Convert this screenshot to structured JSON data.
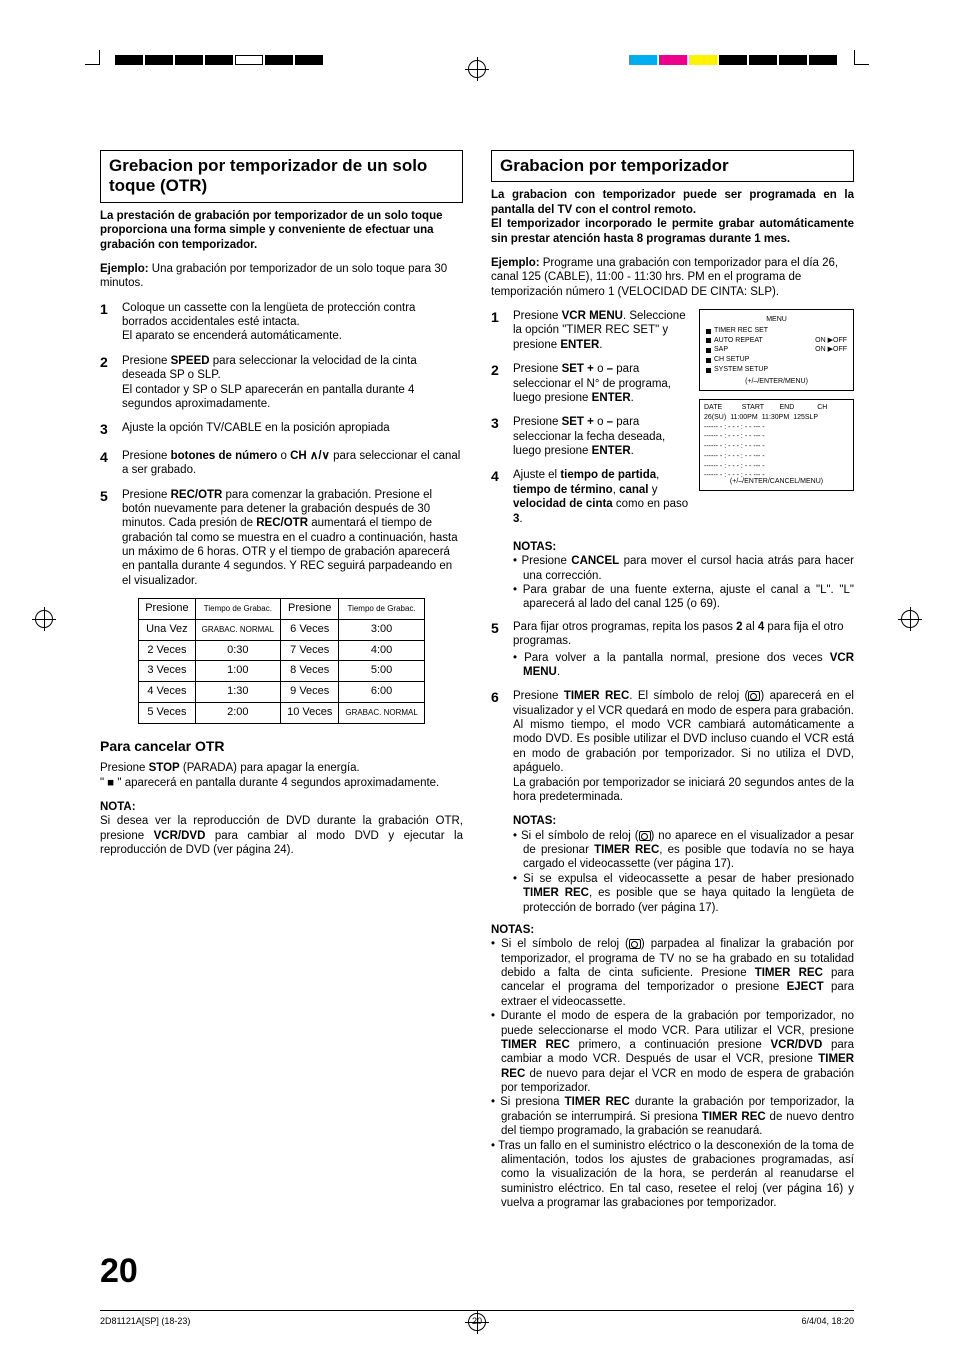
{
  "colorBars": {
    "left": [
      "#000000",
      "#000000",
      "#000000",
      "#000000",
      "#ffffff",
      "#000000",
      "#000000"
    ],
    "right": [
      "#00aeef",
      "#ec008c",
      "#fff200",
      "#000000",
      "#000000",
      "#000000",
      "#000000"
    ]
  },
  "left": {
    "title": "Grebacion por temporizador de un solo toque (OTR)",
    "intro": "La prestación de grabación por temporizador de un solo toque proporciona una forma simple y conveniente de efectuar una grabación con temporizador.",
    "example_label": "Ejemplo:",
    "example_text": " Una grabación por temporizador de un solo toque para 30 minutos.",
    "steps": [
      "Coloque un cassette con la lengüeta de protección contra borrados accidentales esté intacta.\nEl aparato se encenderá automáticamente.",
      "Presione <b>SPEED</b> para seleccionar la velocidad de la cinta deseada SP o SLP.\nEl contador y SP o SLP aparecerán en pantalla durante 4 segundos aproximadamente.",
      "Ajuste la opción TV/CABLE en la posición apropiada",
      "Presione <b>botones de número</b> o <b>CH ∧/∨</b> para seleccionar el canal a ser grabado.",
      "Presione <b>REC/OTR</b> para comenzar la grabación. Presione el botón nuevamente para detener la grabación después de 30 minutos. Cada presión de <b>REC/OTR</b> aumentará el tiempo de grabación tal como se muestra en el cuadro a continuación, hasta un máximo de 6 horas. OTR y el tiempo de grabación aparecerá en pantalla durante 4 segundos. Y REC seguirá parpadeando en el visualizador."
    ],
    "table": {
      "headers": [
        "Presione",
        "Tiempo de Grabac.",
        "Presione",
        "Tiempo de Grabac."
      ],
      "rows": [
        [
          "Una Vez",
          "GRABAC. NORMAL",
          "6 Veces",
          "3:00"
        ],
        [
          "2 Veces",
          "0:30",
          "7 Veces",
          "4:00"
        ],
        [
          "3 Veces",
          "1:00",
          "8 Veces",
          "5:00"
        ],
        [
          "4 Veces",
          "1:30",
          "9 Veces",
          "6:00"
        ],
        [
          "5 Veces",
          "2:00",
          "10 Veces",
          "GRABAC. NORMAL"
        ]
      ]
    },
    "cancel_title": "Para cancelar OTR",
    "cancel_text": "Presione <b>STOP</b> (PARADA) para apagar la energía.\n\" ■ \" aparecerá en pantalla durante 4 segundos aproximadamente.",
    "nota_head": "NOTA:",
    "nota_text": "Si desea ver la reproducción de DVD durante la grabación OTR, presione <b>VCR/DVD</b> para cambiar al modo DVD y ejecutar la reproducción de DVD (ver página 24)."
  },
  "right": {
    "title": "Grabacion por temporizador",
    "intro": "La grabacion con temporizador puede ser programada en la pantalla del TV con el control remoto.\nEl temporizador incorporado le permite grabar automáticamente sin prestar atención hasta 8 programas durante 1 mes.",
    "example_label": "Ejemplo:",
    "example_text": " Programe una grabación con temporizador para el día 26, canal 125 (CABLE), 11:00 - 11:30 hrs. PM en el programa de temporización número 1 (VELOCIDAD DE CINTA: SLP).",
    "steps14": [
      "Presione <b>VCR MENU</b>. Seleccione la opción \"TIMER REC SET\" y presione <b>ENTER</b>.",
      "Presione <b>SET +</b> o <b>–</b> para seleccionar el N° de programa, luego presione <b>ENTER</b>.",
      "Presione <b>SET +</b> o <b>–</b> para seleccionar la fecha deseada, luego presione <b>ENTER</b>.",
      "Ajuste el <b>tiempo de partida</b>, <b>tiempo de término</b>, <b>canal</b> y <b>velocidad de cinta</b> como en paso <b>3</b>."
    ],
    "notas1_head": "NOTAS:",
    "notas1": [
      "Presione <b>CANCEL</b> para mover el cursol hacia atrás para hacer una corrección.",
      "Para grabar de una fuente externa, ajuste el canal a \"L\". \"L\" aparecerá al lado del canal 125 (o 69)."
    ],
    "step5": "Para fijar otros programas, repita los pasos <b>2</b> al <b>4</b> para fija el otro programas.",
    "step5_bullet": "Para volver a la pantalla normal, presione dos veces <b>VCR MENU</b>.",
    "step6": "Presione <b>TIMER REC</b>. El símbolo de reloj (<span class='clock-icon' data-name='clock-icon' data-interactable='false'></span>) aparecerá en el visualizador y el VCR quedará en modo de espera para grabación. Al mismo tiempo, el modo VCR cambiará automáticamente a modo DVD. Es posible utilizar el DVD incluso cuando el VCR está en modo de grabación por temporizador. Si no utiliza el DVD, apáguelo.\nLa grabación por temporizador se iniciará 20 segundos antes de la hora predeterminada.",
    "notas2_head": "NOTAS:",
    "notas2": [
      "Si el símbolo de reloj (<span class='clock-icon' data-name='clock-icon' data-interactable='false'></span>) no aparece en el visualizador a pesar de presionar <b>TIMER REC</b>, es posible que todavía no se haya cargado el videocassette (ver página 17).",
      "Si se expulsa el videocassette a pesar de haber presionado <b>TIMER REC</b>, es posible que se haya quitado la lengüeta de protección de borrado (ver página 17)."
    ],
    "notas3_head": "NOTAS:",
    "notas3": [
      "Si el símbolo de reloj (<span class='clock-icon' data-name='clock-icon' data-interactable='false'></span>) parpadea al finalizar la grabación por temporizador, el programa de TV no se ha grabado en su totalidad debido a falta de cinta suficiente. Presione <b>TIMER REC</b> para cancelar el programa del temporizador o presione <b>EJECT</b> para extraer el videocassette.",
      "Durante el modo de espera de la grabación por temporizador, no puede seleccionarse el modo VCR. Para utilizar el VCR, presione <b>TIMER REC</b> primero, a continuación presione <b>VCR/DVD</b> para cambiar a modo VCR. Después de usar el VCR, presione <b>TIMER REC</b> de nuevo para dejar el VCR en modo de espera de grabación por temporizador.",
      "Si presiona <b>TIMER REC</b> durante la grabación por temporizador, la grabación se interrumpirá. Si presiona <b>TIMER REC</b> de nuevo dentro del tiempo programado, la grabación se reanudará.",
      "Tras un fallo en el suministro eléctrico o la desconexión de la toma de alimentación, todos los ajustes de grabaciones programadas, así como la visualización de la hora, se perderán al reanudarse el suministro eléctrico. En tal caso, resetee el reloj (ver página 16) y vuelva a programar las grabaciones por temporizador."
    ],
    "menu": {
      "title": "MENU",
      "items": [
        "TIMER REC SET",
        "AUTO REPEAT",
        "SAP",
        "CH SETUP",
        "SYSTEM SETUP"
      ],
      "onoff": [
        "",
        "ON ▶OFF",
        "ON ▶OFF",
        "",
        ""
      ],
      "foot": "(+/–/ENTER/MENU)"
    },
    "schedule": {
      "hdr": [
        "DATE",
        "START",
        "END",
        "CH"
      ],
      "row1": [
        "26(SU)",
        "11:00PM",
        "11:30PM",
        "125SLP"
      ],
      "dashes": "------    - : - -    - : - -    ---   -",
      "foot": "(+/–/ENTER/CANCEL/MENU)"
    }
  },
  "pageNum": "20",
  "footer": {
    "l": "2D81121A[SP] (18-23)",
    "c": "20",
    "r": "6/4/04, 18:20"
  }
}
